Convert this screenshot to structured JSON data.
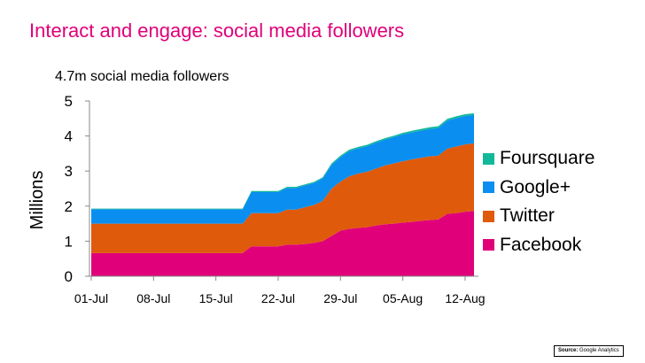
{
  "slide": {
    "title": "Interact and engage: social media followers",
    "source_label": "Source:",
    "source_text": "Google Analytics"
  },
  "chart_data": {
    "type": "area",
    "stacked": true,
    "title": "4.7m social media followers",
    "xlabel": "",
    "ylabel": "Millions",
    "ylim": [
      0,
      5
    ],
    "yticks": [
      "0",
      "1",
      "2",
      "3",
      "4",
      "5"
    ],
    "xticks": [
      {
        "label": "01-Jul",
        "day": 0
      },
      {
        "label": "08-Jul",
        "day": 7
      },
      {
        "label": "15-Jul",
        "day": 14
      },
      {
        "label": "22-Jul",
        "day": 21
      },
      {
        "label": "29-Jul",
        "day": 28
      },
      {
        "label": "05-Aug",
        "day": 35
      },
      {
        "label": "12-Aug",
        "day": 42
      }
    ],
    "x": [
      0,
      1,
      2,
      3,
      4,
      5,
      6,
      7,
      8,
      9,
      10,
      11,
      12,
      13,
      14,
      15,
      16,
      17,
      18,
      19,
      20,
      21,
      22,
      23,
      24,
      25,
      26,
      27,
      28,
      29,
      30,
      31,
      32,
      33,
      34,
      35,
      36,
      37,
      38,
      39,
      40,
      41,
      42,
      43
    ],
    "series": [
      {
        "name": "Facebook",
        "color": "#e0007a",
        "values": [
          0.66,
          0.66,
          0.66,
          0.66,
          0.66,
          0.66,
          0.66,
          0.66,
          0.66,
          0.66,
          0.66,
          0.66,
          0.66,
          0.66,
          0.66,
          0.66,
          0.66,
          0.66,
          0.85,
          0.85,
          0.85,
          0.85,
          0.9,
          0.9,
          0.92,
          0.95,
          1.0,
          1.15,
          1.3,
          1.35,
          1.38,
          1.4,
          1.45,
          1.48,
          1.5,
          1.53,
          1.55,
          1.58,
          1.6,
          1.62,
          1.78,
          1.8,
          1.84,
          1.86
        ]
      },
      {
        "name": "Twitter",
        "color": "#e05a0c",
        "values": [
          0.84,
          0.84,
          0.84,
          0.84,
          0.84,
          0.84,
          0.84,
          0.84,
          0.84,
          0.84,
          0.84,
          0.84,
          0.84,
          0.84,
          0.84,
          0.84,
          0.84,
          0.84,
          0.95,
          0.95,
          0.95,
          0.95,
          1.0,
          1.0,
          1.05,
          1.08,
          1.15,
          1.35,
          1.4,
          1.5,
          1.55,
          1.58,
          1.62,
          1.68,
          1.72,
          1.75,
          1.78,
          1.8,
          1.82,
          1.82,
          1.86,
          1.9,
          1.92,
          1.93
        ]
      },
      {
        "name": "Google+",
        "color": "#0a8ff0",
        "values": [
          0.41,
          0.41,
          0.41,
          0.41,
          0.41,
          0.41,
          0.41,
          0.41,
          0.41,
          0.41,
          0.41,
          0.41,
          0.41,
          0.41,
          0.41,
          0.41,
          0.41,
          0.41,
          0.6,
          0.6,
          0.6,
          0.6,
          0.62,
          0.62,
          0.62,
          0.63,
          0.64,
          0.68,
          0.7,
          0.72,
          0.72,
          0.73,
          0.74,
          0.74,
          0.75,
          0.77,
          0.77,
          0.77,
          0.78,
          0.79,
          0.8,
          0.81,
          0.81,
          0.81
        ]
      },
      {
        "name": "Foursquare",
        "color": "#12b89a",
        "values": [
          0.02,
          0.02,
          0.02,
          0.02,
          0.02,
          0.02,
          0.02,
          0.02,
          0.02,
          0.02,
          0.02,
          0.02,
          0.02,
          0.02,
          0.02,
          0.02,
          0.02,
          0.02,
          0.03,
          0.03,
          0.03,
          0.03,
          0.03,
          0.03,
          0.03,
          0.03,
          0.03,
          0.04,
          0.04,
          0.04,
          0.04,
          0.04,
          0.04,
          0.04,
          0.04,
          0.04,
          0.05,
          0.05,
          0.05,
          0.05,
          0.05,
          0.05,
          0.05,
          0.05
        ]
      }
    ],
    "legend_position": "right"
  }
}
